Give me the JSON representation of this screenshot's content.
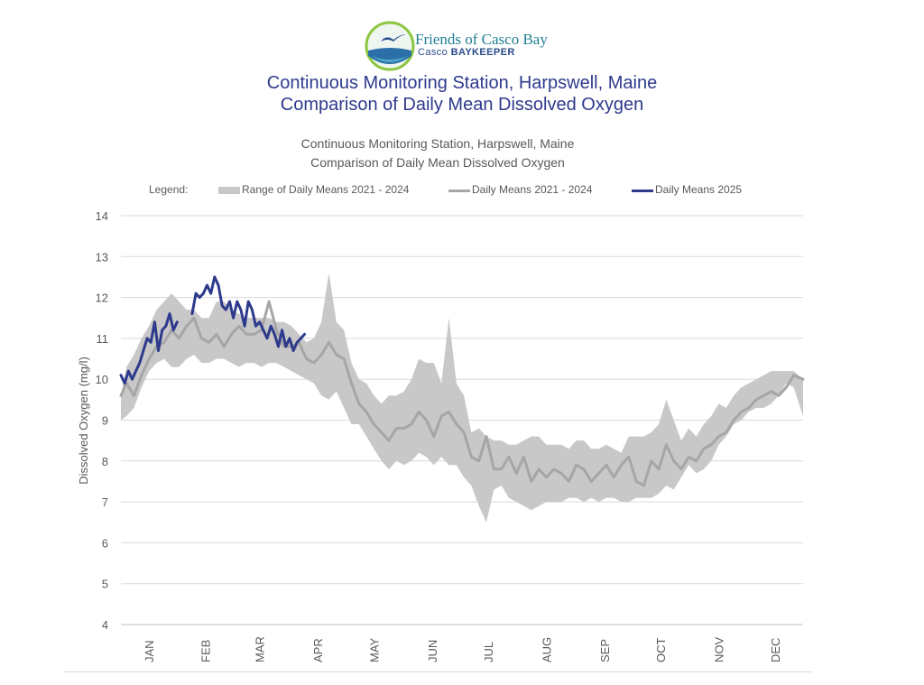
{
  "logo": {
    "name_line1": "Friends of Casco Bay",
    "name_line2_prefix": "Casco ",
    "name_line2_bold": "BAYKEEPER"
  },
  "header": {
    "title_line1": "Continuous Monitoring Station, Harpswell, Maine",
    "title_line2": "Comparison of Daily Mean Dissolved Oxygen"
  },
  "chart_data": {
    "type": "line",
    "title": "Continuous Monitoring Station, Harpswell, Maine",
    "subtitle": "Comparison of Daily Mean Dissolved Oxygen",
    "ylabel": "Dissolved Oxygen (mg/l)",
    "xlabel": "",
    "ylim": [
      4,
      14
    ],
    "yticks": [
      4,
      5,
      6,
      7,
      8,
      9,
      10,
      11,
      12,
      13,
      14
    ],
    "xlim_day_of_year": [
      1,
      365
    ],
    "month_labels": [
      "JAN",
      "FEB",
      "MAR",
      "APR",
      "MAY",
      "JUN",
      "JUL",
      "AUG",
      "SEP",
      "OCT",
      "NOV",
      "DEC"
    ],
    "month_label_day_of_year": [
      16,
      46,
      75,
      106,
      136,
      167,
      197,
      228,
      259,
      289,
      320,
      350
    ],
    "grid": "horizontal",
    "legend_title": "Legend:",
    "legend_position": "top",
    "series": [
      {
        "name": "Range of Daily Means 2021 - 2024",
        "kind": "band",
        "color": "#c8c8c8",
        "x": [
          1,
          4,
          8,
          12,
          16,
          20,
          24,
          28,
          32,
          36,
          40,
          44,
          48,
          52,
          56,
          60,
          64,
          68,
          72,
          76,
          80,
          84,
          88,
          92,
          96,
          100,
          104,
          108,
          112,
          116,
          120,
          124,
          128,
          132,
          136,
          140,
          144,
          148,
          152,
          156,
          160,
          164,
          168,
          172,
          176,
          180,
          184,
          188,
          192,
          196,
          200,
          204,
          208,
          212,
          216,
          220,
          224,
          228,
          232,
          236,
          240,
          244,
          248,
          252,
          256,
          260,
          264,
          268,
          272,
          276,
          280,
          284,
          288,
          292,
          296,
          300,
          304,
          308,
          312,
          316,
          320,
          324,
          328,
          332,
          336,
          340,
          344,
          348,
          352,
          356,
          360,
          365
        ],
        "low": [
          9.0,
          9.1,
          9.3,
          9.8,
          10.2,
          10.4,
          10.5,
          10.3,
          10.3,
          10.5,
          10.6,
          10.4,
          10.4,
          10.5,
          10.5,
          10.4,
          10.3,
          10.4,
          10.4,
          10.3,
          10.4,
          10.4,
          10.3,
          10.2,
          10.1,
          10.0,
          9.9,
          9.6,
          9.5,
          9.7,
          9.3,
          8.9,
          8.9,
          8.6,
          8.3,
          8.0,
          7.8,
          8.0,
          7.9,
          8.0,
          8.2,
          8.1,
          7.9,
          8.1,
          7.9,
          7.9,
          7.6,
          7.4,
          6.9,
          6.5,
          7.3,
          7.4,
          7.1,
          7.0,
          6.9,
          6.8,
          6.9,
          7.0,
          7.0,
          7.0,
          7.1,
          7.1,
          7.0,
          7.1,
          7.0,
          7.1,
          7.1,
          7.0,
          7.0,
          7.1,
          7.1,
          7.1,
          7.2,
          7.4,
          7.3,
          7.6,
          7.9,
          7.7,
          7.8,
          8.0,
          8.4,
          8.6,
          8.9,
          9.0,
          9.2,
          9.3,
          9.3,
          9.4,
          9.6,
          9.9,
          9.8,
          9.1
        ],
        "high": [
          9.6,
          10.3,
          10.6,
          11.0,
          11.3,
          11.7,
          11.9,
          12.1,
          11.9,
          11.7,
          11.7,
          11.5,
          11.5,
          11.9,
          11.9,
          11.7,
          11.6,
          11.5,
          11.5,
          11.5,
          11.5,
          11.4,
          11.4,
          11.3,
          11.1,
          10.9,
          11.0,
          11.4,
          12.6,
          11.4,
          11.2,
          10.4,
          10.0,
          9.9,
          9.6,
          9.4,
          9.6,
          9.6,
          9.7,
          10.0,
          10.5,
          10.4,
          10.4,
          9.9,
          11.5,
          9.9,
          9.6,
          8.7,
          8.8,
          8.6,
          8.5,
          8.5,
          8.4,
          8.4,
          8.5,
          8.6,
          8.6,
          8.4,
          8.4,
          8.4,
          8.3,
          8.5,
          8.5,
          8.3,
          8.3,
          8.4,
          8.3,
          8.2,
          8.6,
          8.6,
          8.6,
          8.7,
          8.9,
          9.5,
          9.0,
          8.5,
          8.8,
          8.6,
          8.9,
          9.1,
          9.4,
          9.3,
          9.6,
          9.8,
          9.9,
          10.0,
          10.1,
          10.2,
          10.2,
          10.2,
          10.2,
          10.0
        ]
      },
      {
        "name": "Daily Means 2021 - 2024",
        "kind": "line",
        "color": "#a6a6a6",
        "x": [
          1,
          4,
          8,
          12,
          16,
          20,
          24,
          28,
          32,
          36,
          40,
          44,
          48,
          52,
          56,
          60,
          64,
          68,
          72,
          76,
          80,
          84,
          88,
          92,
          96,
          100,
          104,
          108,
          112,
          116,
          120,
          124,
          128,
          132,
          136,
          140,
          144,
          148,
          152,
          156,
          160,
          164,
          168,
          172,
          176,
          180,
          184,
          188,
          192,
          196,
          200,
          204,
          208,
          212,
          216,
          220,
          224,
          228,
          232,
          236,
          240,
          244,
          248,
          252,
          256,
          260,
          264,
          268,
          272,
          276,
          280,
          284,
          288,
          292,
          296,
          300,
          304,
          308,
          312,
          316,
          320,
          324,
          328,
          332,
          336,
          340,
          344,
          348,
          352,
          356,
          360,
          365
        ],
        "y": [
          9.6,
          9.9,
          9.6,
          10.1,
          10.5,
          10.8,
          10.9,
          11.2,
          11.0,
          11.3,
          11.5,
          11.0,
          10.9,
          11.1,
          10.8,
          11.1,
          11.3,
          11.1,
          11.1,
          11.2,
          11.9,
          11.2,
          10.8,
          10.8,
          10.9,
          10.5,
          10.4,
          10.6,
          10.9,
          10.6,
          10.5,
          9.9,
          9.4,
          9.2,
          8.9,
          8.7,
          8.5,
          8.8,
          8.8,
          8.9,
          9.2,
          9.0,
          8.6,
          9.1,
          9.2,
          8.9,
          8.7,
          8.1,
          8.0,
          8.6,
          7.8,
          7.8,
          8.1,
          7.7,
          8.1,
          7.5,
          7.8,
          7.6,
          7.8,
          7.7,
          7.5,
          7.9,
          7.8,
          7.5,
          7.7,
          7.9,
          7.6,
          7.9,
          8.1,
          7.5,
          7.4,
          8.0,
          7.8,
          8.4,
          8.0,
          7.8,
          8.1,
          8.0,
          8.3,
          8.4,
          8.6,
          8.7,
          9.0,
          9.2,
          9.3,
          9.5,
          9.6,
          9.7,
          9.6,
          9.8,
          10.1,
          10.0
        ]
      },
      {
        "name": "Daily Means 2025",
        "kind": "line",
        "color": "#2e3a8c",
        "segments": [
          {
            "x": [
              1,
              3,
              5,
              7,
              9,
              11,
              13,
              15,
              17,
              19,
              21,
              23,
              25,
              27,
              29,
              31
            ],
            "y": [
              10.1,
              9.9,
              10.2,
              10.0,
              10.2,
              10.4,
              10.7,
              11.0,
              10.9,
              11.4,
              10.7,
              11.2,
              11.3,
              11.6,
              11.2,
              11.4
            ]
          },
          {
            "x": [
              39,
              41,
              43,
              45,
              47,
              49,
              51,
              53,
              55,
              57,
              59,
              61,
              63,
              65,
              67,
              69,
              71,
              73,
              75,
              77,
              79,
              81,
              83,
              85,
              87,
              89,
              91,
              93,
              95,
              97,
              99
            ],
            "y": [
              11.6,
              12.1,
              12.0,
              12.1,
              12.3,
              12.1,
              12.5,
              12.3,
              11.8,
              11.7,
              11.9,
              11.5,
              11.9,
              11.7,
              11.3,
              11.9,
              11.7,
              11.3,
              11.4,
              11.2,
              11.0,
              11.3,
              11.1,
              10.8,
              11.2,
              10.8,
              11.0,
              10.7,
              10.9,
              11.0,
              11.1
            ]
          }
        ]
      }
    ]
  }
}
